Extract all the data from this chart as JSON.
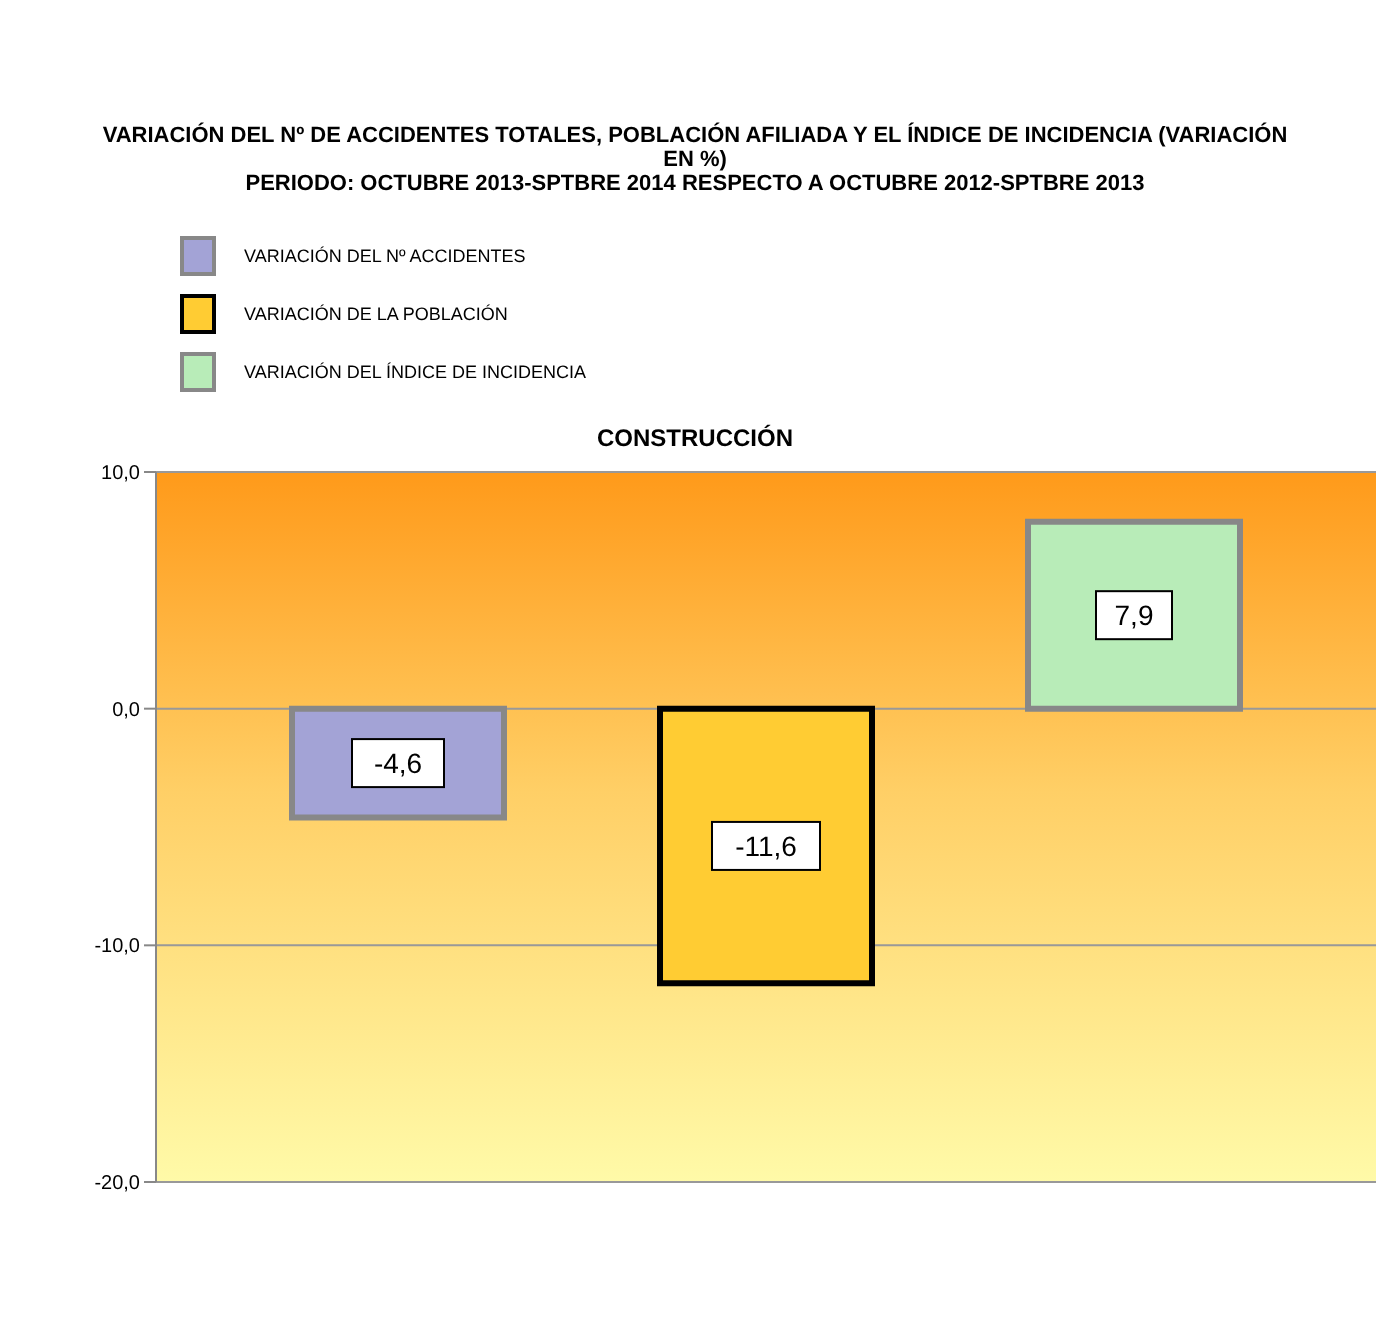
{
  "chart_data": {
    "type": "bar",
    "title": "VARIACIÓN DEL Nº DE ACCIDENTES TOTALES, POBLACIÓN AFILIADA Y EL ÍNDICE DE INCIDENCIA (VARIACIÓN EN %)",
    "subtitle": "PERIODO: OCTUBRE 2013-SPTBRE 2014 RESPECTO A OCTUBRE 2012-SPTBRE 2013",
    "annotations": [
      "CONSTRUCCIÓN"
    ],
    "categories": [
      null
    ],
    "series": [
      {
        "name": "VARIACIÓN DEL Nº ACCIDENTES",
        "color": "#a3a3d6",
        "values": [
          -4.6
        ],
        "value_labels": [
          "-4,6"
        ]
      },
      {
        "name": "VARIACIÓN DE LA POBLACIÓN",
        "color": "#ffcc33",
        "values": [
          -11.6
        ],
        "value_labels": [
          "-11,6"
        ]
      },
      {
        "name": "VARIACIÓN DEL ÍNDICE DE INCIDENCIA",
        "color": "#b8ecb8",
        "values": [
          7.9
        ],
        "value_labels": [
          "7,9"
        ]
      }
    ],
    "ylim": [
      -20,
      10
    ],
    "yticks": [
      {
        "value": -20,
        "label": "-20,0"
      },
      {
        "value": -10,
        "label": "-10,0"
      },
      {
        "value": 0,
        "label": "0,0"
      },
      {
        "value": 10,
        "label": "10,0"
      }
    ],
    "grid": "y",
    "legend": "top left"
  }
}
